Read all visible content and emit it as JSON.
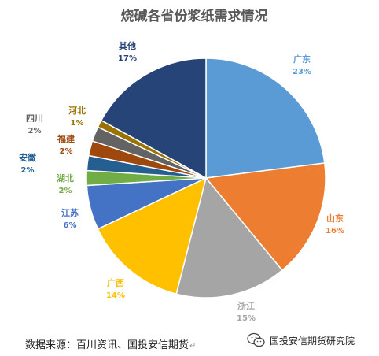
{
  "chart_data": {
    "type": "pie",
    "title": "烧碱各省份浆纸需求情况",
    "legend": "none",
    "slices": [
      {
        "name": "广东",
        "value": 23,
        "label": "23%",
        "color": "#5B9BD5"
      },
      {
        "name": "山东",
        "value": 16,
        "label": "16%",
        "color": "#ED7D31"
      },
      {
        "name": "浙江",
        "value": 15,
        "label": "15%",
        "color": "#A5A5A5"
      },
      {
        "name": "广西",
        "value": 14,
        "label": "14%",
        "color": "#FFC000"
      },
      {
        "name": "江苏",
        "value": 6,
        "label": "6%",
        "color": "#4472C4"
      },
      {
        "name": "湖北",
        "value": 2,
        "label": "2%",
        "color": "#70AD47"
      },
      {
        "name": "安徽",
        "value": 2,
        "label": "2%",
        "color": "#255E91"
      },
      {
        "name": "福建",
        "value": 2,
        "label": "2%",
        "color": "#9E480E"
      },
      {
        "name": "四川",
        "value": 2,
        "label": "2%",
        "color": "#636363"
      },
      {
        "name": "河北",
        "value": 1,
        "label": "1%",
        "color": "#997300"
      },
      {
        "name": "其他",
        "value": 17,
        "label": "17%",
        "color": "#264478"
      }
    ]
  },
  "footer": {
    "source": "数据来源：百川资讯、国投安信期货",
    "watermark": "国投安信期货研究院",
    "watermark_icon": "wechat-icon"
  }
}
